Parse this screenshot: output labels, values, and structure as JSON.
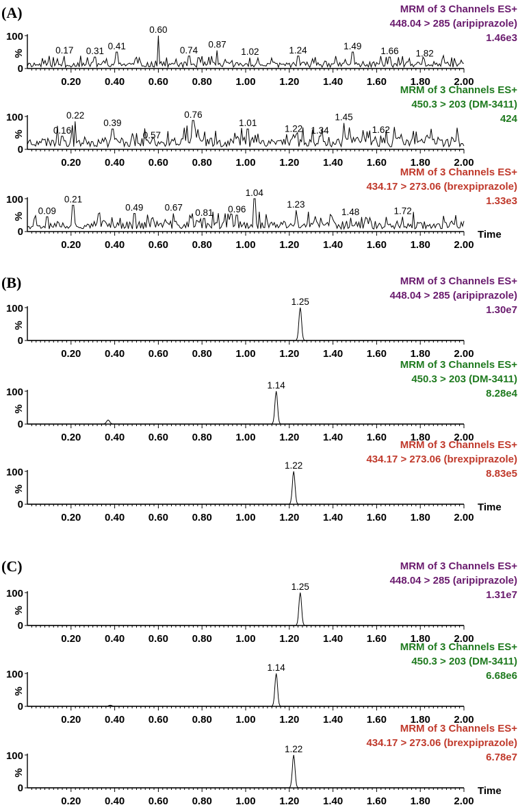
{
  "chart_data": [
    {
      "type": "line",
      "panel_label": "(A)",
      "traces": [
        {
          "info": [
            "MRM of 3 Channels ES+",
            "448.04 > 285 (aripiprazole)",
            "1.46e3"
          ],
          "color": "#6a1b6e",
          "x_ticks": [
            "0.20",
            "0.40",
            "0.60",
            "0.80",
            "1.00",
            "1.20",
            "1.40",
            "1.60",
            "1.80",
            "2.00"
          ],
          "y_ticks": [
            "100",
            "0"
          ],
          "ylabel": "%",
          "xlabel": "",
          "xlim": [
            0,
            2.0
          ],
          "ylim": [
            0,
            100
          ],
          "noise": true,
          "baseline": 12,
          "amplitude": 30,
          "seed": 11,
          "peaks": [
            {
              "x": 0.17,
              "label": "0.17",
              "height": 38
            },
            {
              "x": 0.31,
              "label": "0.31",
              "height": 35
            },
            {
              "x": 0.41,
              "label": "0.41",
              "height": 50
            },
            {
              "x": 0.6,
              "label": "0.60",
              "height": 100
            },
            {
              "x": 0.74,
              "label": "0.74",
              "height": 38
            },
            {
              "x": 0.87,
              "label": "0.87",
              "height": 55
            },
            {
              "x": 1.02,
              "label": "1.02",
              "height": 33
            },
            {
              "x": 1.24,
              "label": "1.24",
              "height": 38
            },
            {
              "x": 1.49,
              "label": "1.49",
              "height": 50
            },
            {
              "x": 1.66,
              "label": "1.66",
              "height": 35
            },
            {
              "x": 1.82,
              "label": "1.82",
              "height": 28
            }
          ]
        },
        {
          "info": [
            "MRM of 3 Channels ES+",
            "450.3 > 203 (DM-3411)",
            "424"
          ],
          "color": "#1f7a1f",
          "x_ticks": [
            "0.20",
            "0.40",
            "0.60",
            "0.80",
            "1.00",
            "1.20",
            "1.40",
            "1.60",
            "1.80",
            "2.00"
          ],
          "y_ticks": [
            "100",
            "0"
          ],
          "ylabel": "%",
          "xlabel": "",
          "xlim": [
            0,
            2.0
          ],
          "ylim": [
            0,
            100
          ],
          "noise": true,
          "baseline": 25,
          "amplitude": 55,
          "seed": 23,
          "peaks": [
            {
              "x": 0.16,
              "label": "0.16",
              "height": 40
            },
            {
              "x": 0.22,
              "label": "0.22",
              "height": 85
            },
            {
              "x": 0.39,
              "label": "0.39",
              "height": 62
            },
            {
              "x": 0.57,
              "label": "0.57",
              "height": 25
            },
            {
              "x": 0.76,
              "label": "0.76",
              "height": 88
            },
            {
              "x": 1.01,
              "label": "1.01",
              "height": 62
            },
            {
              "x": 1.22,
              "label": "1.22",
              "height": 45
            },
            {
              "x": 1.34,
              "label": "1.34",
              "height": 40
            },
            {
              "x": 1.45,
              "label": "1.45",
              "height": 80
            },
            {
              "x": 1.62,
              "label": "1.62",
              "height": 42
            }
          ]
        },
        {
          "info": [
            "MRM of 3 Channels ES+",
            "434.17 > 273.06 (brexpiprazole)",
            "1.33e3"
          ],
          "color": "#c0392b",
          "x_ticks": [
            "0.20",
            "0.40",
            "0.60",
            "0.80",
            "1.00",
            "1.20",
            "1.40",
            "1.60",
            "1.80",
            "2.00"
          ],
          "y_ticks": [
            "100",
            "0"
          ],
          "ylabel": "%",
          "xlabel": "Time",
          "xlim": [
            0,
            2.0
          ],
          "ylim": [
            0,
            100
          ],
          "noise": true,
          "baseline": 25,
          "amplitude": 45,
          "seed": 37,
          "peaks": [
            {
              "x": 0.09,
              "label": "0.09",
              "height": 45
            },
            {
              "x": 0.21,
              "label": "0.21",
              "height": 80
            },
            {
              "x": 0.49,
              "label": "0.49",
              "height": 55
            },
            {
              "x": 0.67,
              "label": "0.67",
              "height": 55
            },
            {
              "x": 0.81,
              "label": "0.81",
              "height": 40
            },
            {
              "x": 0.96,
              "label": "0.96",
              "height": 50
            },
            {
              "x": 1.04,
              "label": "1.04",
              "height": 100
            },
            {
              "x": 1.23,
              "label": "1.23",
              "height": 65
            },
            {
              "x": 1.48,
              "label": "1.48",
              "height": 42
            },
            {
              "x": 1.72,
              "label": "1.72",
              "height": 45
            }
          ]
        }
      ]
    },
    {
      "type": "line",
      "panel_label": "(B)",
      "traces": [
        {
          "info": [
            "MRM of 3 Channels ES+",
            "448.04 > 285 (aripiprazole)",
            "1.30e7"
          ],
          "color": "#6a1b6e",
          "x_ticks": [
            "0.20",
            "0.40",
            "0.60",
            "0.80",
            "1.00",
            "1.20",
            "1.40",
            "1.60",
            "1.80",
            "2.00"
          ],
          "y_ticks": [
            "100",
            "0"
          ],
          "ylabel": "%",
          "xlabel": "",
          "xlim": [
            0,
            2.0
          ],
          "ylim": [
            0,
            100
          ],
          "noise": false,
          "peaks": [
            {
              "x": 1.25,
              "label": "1.25",
              "height": 100
            }
          ]
        },
        {
          "info": [
            "MRM of 3 Channels ES+",
            "450.3 > 203 (DM-3411)",
            "8.28e4"
          ],
          "color": "#1f7a1f",
          "x_ticks": [
            "0.20",
            "0.40",
            "0.60",
            "0.80",
            "1.00",
            "1.20",
            "1.40",
            "1.60",
            "1.80",
            "2.00"
          ],
          "y_ticks": [
            "100",
            "0"
          ],
          "ylabel": "%",
          "xlabel": "",
          "xlim": [
            0,
            2.0
          ],
          "ylim": [
            0,
            100
          ],
          "noise": false,
          "minor_bumps": [
            {
              "x": 0.37,
              "height": 12
            }
          ],
          "peaks": [
            {
              "x": 1.14,
              "label": "1.14",
              "height": 100
            }
          ]
        },
        {
          "info": [
            "MRM of 3 Channels ES+",
            "434.17 > 273.06 (brexpiprazole)",
            "8.83e5"
          ],
          "color": "#c0392b",
          "x_ticks": [
            "0.20",
            "0.40",
            "0.60",
            "0.80",
            "1.00",
            "1.20",
            "1.40",
            "1.60",
            "1.80",
            "2.00"
          ],
          "y_ticks": [
            "100",
            "0"
          ],
          "ylabel": "%",
          "xlabel": "Time",
          "xlim": [
            0,
            2.0
          ],
          "ylim": [
            0,
            100
          ],
          "noise": false,
          "peaks": [
            {
              "x": 1.22,
              "label": "1.22",
              "height": 100
            }
          ]
        }
      ]
    },
    {
      "type": "line",
      "panel_label": "(C)",
      "traces": [
        {
          "info": [
            "MRM of 3 Channels ES+",
            "448.04 > 285 (aripiprazole)",
            "1.31e7"
          ],
          "color": "#6a1b6e",
          "x_ticks": [
            "0.20",
            "0.40",
            "0.60",
            "0.80",
            "1.00",
            "1.20",
            "1.40",
            "1.60",
            "1.80",
            "2.00"
          ],
          "y_ticks": [
            "100",
            "0"
          ],
          "ylabel": "%",
          "xlabel": "",
          "xlim": [
            0,
            2.0
          ],
          "ylim": [
            0,
            100
          ],
          "noise": false,
          "peaks": [
            {
              "x": 1.25,
              "label": "1.25",
              "height": 100
            }
          ]
        },
        {
          "info": [
            "MRM of 3 Channels ES+",
            "450.3 > 203 (DM-3411)",
            "6.68e6"
          ],
          "color": "#1f7a1f",
          "x_ticks": [
            "0.20",
            "0.40",
            "0.60",
            "0.80",
            "1.00",
            "1.20",
            "1.40",
            "1.60",
            "1.80",
            "2.00"
          ],
          "y_ticks": [
            "100",
            "0"
          ],
          "ylabel": "%",
          "xlabel": "",
          "xlim": [
            0,
            2.0
          ],
          "ylim": [
            0,
            100
          ],
          "noise": false,
          "minor_bumps": [
            {
              "x": 0.38,
              "height": 3
            }
          ],
          "peaks": [
            {
              "x": 1.14,
              "label": "1.14",
              "height": 100
            }
          ]
        },
        {
          "info": [
            "MRM of 3 Channels ES+",
            "434.17 > 273.06 (brexpiprazole)",
            "6.78e7"
          ],
          "color": "#c0392b",
          "x_ticks": [
            "0.20",
            "0.40",
            "0.60",
            "0.80",
            "1.00",
            "1.20",
            "1.40",
            "1.60",
            "1.80",
            "2.00"
          ],
          "y_ticks": [
            "100",
            "0"
          ],
          "ylabel": "%",
          "xlabel": "Time",
          "xlim": [
            0,
            2.0
          ],
          "ylim": [
            0,
            100
          ],
          "noise": false,
          "peaks": [
            {
              "x": 1.22,
              "label": "1.22",
              "height": 100
            }
          ]
        }
      ]
    }
  ]
}
